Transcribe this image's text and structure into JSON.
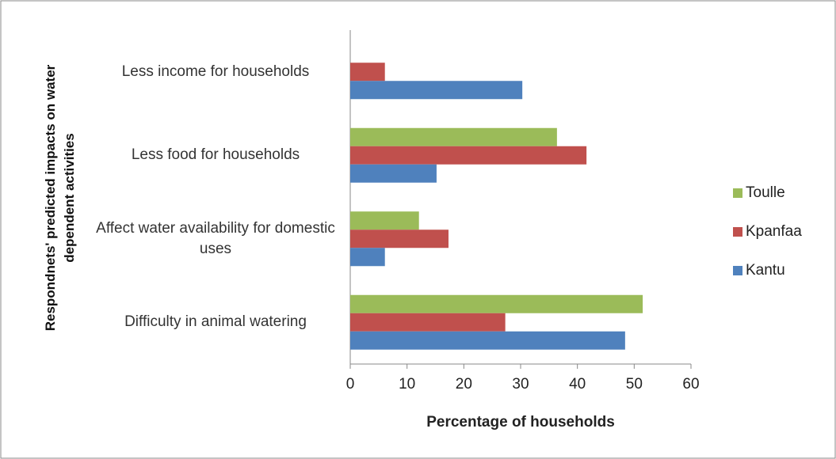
{
  "chart_data": {
    "type": "hbar",
    "x_label": "Percentage of households",
    "y_label": "Respondnets' predicted impacts on water dependent activities",
    "categories": [
      "Less income for households",
      "Less food for households",
      "Affect water availability for domestic uses",
      "Difficulty in animal watering"
    ],
    "series": [
      {
        "name": "Toulle",
        "color": "#9bbb59",
        "values": [
          null,
          36.4,
          12.1,
          51.5
        ]
      },
      {
        "name": "Kpanfaa",
        "color": "#c0504d",
        "values": [
          6.1,
          41.6,
          17.3,
          27.3
        ]
      },
      {
        "name": "Kantu",
        "color": "#4f81bd",
        "values": [
          30.3,
          15.2,
          6.1,
          48.4
        ]
      }
    ],
    "xlim": [
      0,
      60
    ],
    "xticks": [
      0,
      10,
      20,
      30,
      40,
      50,
      60
    ],
    "legend": "right"
  }
}
